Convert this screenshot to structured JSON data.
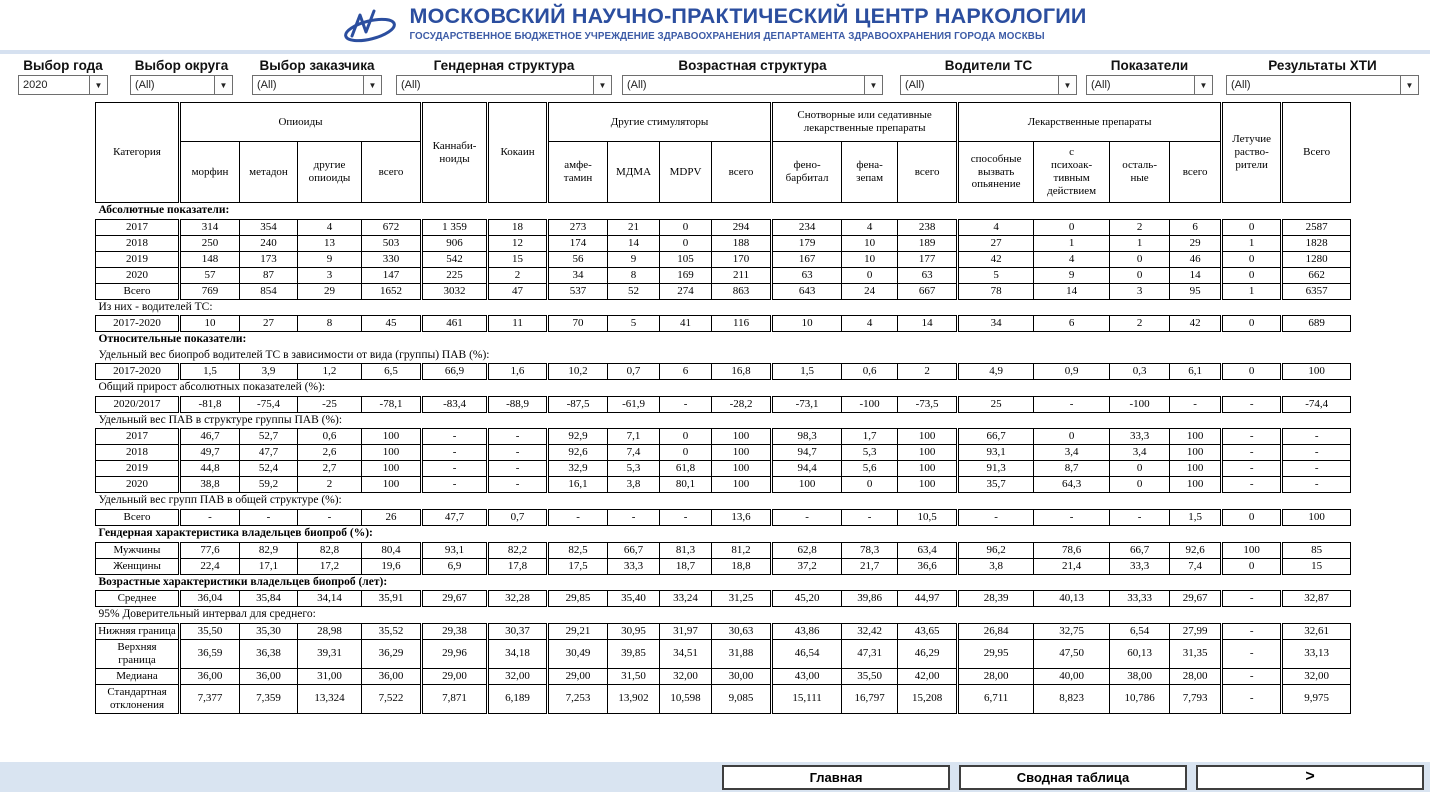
{
  "header": {
    "title": "МОСКОВСКИЙ НАУЧНО-ПРАКТИЧЕСКИЙ ЦЕНТР НАРКОЛОГИИ",
    "subtitle": "ГОСУДАРСТВЕННОЕ БЮДЖЕТНОЕ УЧРЕЖДЕНИЕ ЗДРАВООХРАНЕНИЯ ДЕПАРТАМЕНТА ЗДРАВООХРАНЕНИЯ ГОРОДА МОСКВЫ",
    "logo_icon": "mnpc-swoosh-logo"
  },
  "colors": {
    "brand_blue": "#2b4e9f",
    "footer_bar": "#d9e4f1",
    "table_border": "#000000"
  },
  "filters": [
    {
      "label": "Выбор года",
      "value": "2020"
    },
    {
      "label": "Выбор округа",
      "value": "(All)"
    },
    {
      "label": "Выбор заказчика",
      "value": "(All)"
    },
    {
      "label": "Гендерная структура",
      "value": "(All)"
    },
    {
      "label": "Возрастная структура",
      "value": "(All)"
    },
    {
      "label": "Водители ТС",
      "value": "(All)"
    },
    {
      "label": "Показатели",
      "value": "(All)"
    },
    {
      "label": "Результаты ХТИ",
      "value": "(All)"
    }
  ],
  "table": {
    "header": {
      "category": "Категория",
      "groups": [
        {
          "label": "Опиоиды",
          "children": [
            "морфин",
            "метадон",
            "другие\nопиоиды",
            "всего"
          ]
        },
        {
          "label": "Каннаби-\nноиды",
          "children": []
        },
        {
          "label": "Кокаин",
          "children": []
        },
        {
          "label": "Другие стимуляторы",
          "children": [
            "амфе-\nтамин",
            "МДМА",
            "MDPV",
            "всего"
          ]
        },
        {
          "label": "Снотворные или седативные\nлекарственные препараты",
          "children": [
            "фено-\nбарбитал",
            "фена-\nзепам",
            "всего"
          ]
        },
        {
          "label": "Лекарственные препараты",
          "children": [
            "способные\nвызвать\nопьянение",
            "с\nпсихоак-\nтивным\nдействием",
            "осталь-\nные",
            "всего"
          ]
        },
        {
          "label": "Летучие\nраство-\nрители",
          "children": []
        },
        {
          "label": "Всего",
          "children": []
        }
      ]
    },
    "sections": [
      {
        "titles": [
          {
            "text": "Абсолютные показатели:",
            "bold": true
          }
        ],
        "rows": [
          {
            "label": "2017",
            "values": [
              "314",
              "354",
              "4",
              "672",
              "1 359",
              "18",
              "273",
              "21",
              "0",
              "294",
              "234",
              "4",
              "238",
              "4",
              "0",
              "2",
              "6",
              "0",
              "2587"
            ]
          },
          {
            "label": "2018",
            "values": [
              "250",
              "240",
              "13",
              "503",
              "906",
              "12",
              "174",
              "14",
              "0",
              "188",
              "179",
              "10",
              "189",
              "27",
              "1",
              "1",
              "29",
              "1",
              "1828"
            ]
          },
          {
            "label": "2019",
            "values": [
              "148",
              "173",
              "9",
              "330",
              "542",
              "15",
              "56",
              "9",
              "105",
              "170",
              "167",
              "10",
              "177",
              "42",
              "4",
              "0",
              "46",
              "0",
              "1280"
            ]
          },
          {
            "label": "2020",
            "values": [
              "57",
              "87",
              "3",
              "147",
              "225",
              "2",
              "34",
              "8",
              "169",
              "211",
              "63",
              "0",
              "63",
              "5",
              "9",
              "0",
              "14",
              "0",
              "662"
            ]
          },
          {
            "label": "Всего",
            "values": [
              "769",
              "854",
              "29",
              "1652",
              "3032",
              "47",
              "537",
              "52",
              "274",
              "863",
              "643",
              "24",
              "667",
              "78",
              "14",
              "3",
              "95",
              "1",
              "6357"
            ]
          }
        ]
      },
      {
        "titles": [
          {
            "text": "Из них - водителей ТС:",
            "bold": false
          }
        ],
        "rows": [
          {
            "label": "2017-2020",
            "values": [
              "10",
              "27",
              "8",
              "45",
              "461",
              "11",
              "70",
              "5",
              "41",
              "116",
              "10",
              "4",
              "14",
              "34",
              "6",
              "2",
              "42",
              "0",
              "689"
            ]
          }
        ]
      },
      {
        "titles": [
          {
            "text": "Относительные показатели:",
            "bold": true
          },
          {
            "text": "Удельный вес биопроб водителей ТС в зависимости от вида (группы) ПАВ (%):",
            "bold": false
          }
        ],
        "rows": [
          {
            "label": "2017-2020",
            "values": [
              "1,5",
              "3,9",
              "1,2",
              "6,5",
              "66,9",
              "1,6",
              "10,2",
              "0,7",
              "6",
              "16,8",
              "1,5",
              "0,6",
              "2",
              "4,9",
              "0,9",
              "0,3",
              "6,1",
              "0",
              "100"
            ]
          }
        ]
      },
      {
        "titles": [
          {
            "text": "Общий прирост абсолютных показателей (%):",
            "bold": false
          }
        ],
        "rows": [
          {
            "label": "2020/2017",
            "values": [
              "-81,8",
              "-75,4",
              "-25",
              "-78,1",
              "-83,4",
              "-88,9",
              "-87,5",
              "-61,9",
              "-",
              "-28,2",
              "-73,1",
              "-100",
              "-73,5",
              "25",
              "-",
              "-100",
              "-",
              "-",
              "-74,4"
            ]
          }
        ]
      },
      {
        "titles": [
          {
            "text": "Удельный вес ПАВ в структуре группы ПАВ (%):",
            "bold": false
          }
        ],
        "rows": [
          {
            "label": "2017",
            "values": [
              "46,7",
              "52,7",
              "0,6",
              "100",
              "-",
              "-",
              "92,9",
              "7,1",
              "0",
              "100",
              "98,3",
              "1,7",
              "100",
              "66,7",
              "0",
              "33,3",
              "100",
              "-",
              "-"
            ]
          },
          {
            "label": "2018",
            "values": [
              "49,7",
              "47,7",
              "2,6",
              "100",
              "-",
              "-",
              "92,6",
              "7,4",
              "0",
              "100",
              "94,7",
              "5,3",
              "100",
              "93,1",
              "3,4",
              "3,4",
              "100",
              "-",
              "-"
            ]
          },
          {
            "label": "2019",
            "values": [
              "44,8",
              "52,4",
              "2,7",
              "100",
              "-",
              "-",
              "32,9",
              "5,3",
              "61,8",
              "100",
              "94,4",
              "5,6",
              "100",
              "91,3",
              "8,7",
              "0",
              "100",
              "-",
              "-"
            ]
          },
          {
            "label": "2020",
            "values": [
              "38,8",
              "59,2",
              "2",
              "100",
              "-",
              "-",
              "16,1",
              "3,8",
              "80,1",
              "100",
              "100",
              "0",
              "100",
              "35,7",
              "64,3",
              "0",
              "100",
              "-",
              "-"
            ]
          }
        ]
      },
      {
        "titles": [
          {
            "text": "Удельный вес групп ПАВ в общей структуре (%):",
            "bold": false
          }
        ],
        "rows": [
          {
            "label": "Всего",
            "values": [
              "-",
              "-",
              "-",
              "26",
              "47,7",
              "0,7",
              "-",
              "-",
              "-",
              "13,6",
              "-",
              "-",
              "10,5",
              "-",
              "-",
              "-",
              "1,5",
              "0",
              "100"
            ]
          }
        ]
      },
      {
        "titles": [
          {
            "text": "Гендерная характеристика владельцев биопроб (%):",
            "bold": true
          }
        ],
        "rows": [
          {
            "label": "Мужчины",
            "values": [
              "77,6",
              "82,9",
              "82,8",
              "80,4",
              "93,1",
              "82,2",
              "82,5",
              "66,7",
              "81,3",
              "81,2",
              "62,8",
              "78,3",
              "63,4",
              "96,2",
              "78,6",
              "66,7",
              "92,6",
              "100",
              "85"
            ]
          },
          {
            "label": "Женщины",
            "values": [
              "22,4",
              "17,1",
              "17,2",
              "19,6",
              "6,9",
              "17,8",
              "17,5",
              "33,3",
              "18,7",
              "18,8",
              "37,2",
              "21,7",
              "36,6",
              "3,8",
              "21,4",
              "33,3",
              "7,4",
              "0",
              "15"
            ]
          }
        ]
      },
      {
        "titles": [
          {
            "text": "Возрастные характеристики владельцев биопроб (лет):",
            "bold": true
          }
        ],
        "rows": [
          {
            "label": "Среднее",
            "values": [
              "36,04",
              "35,84",
              "34,14",
              "35,91",
              "29,67",
              "32,28",
              "29,85",
              "35,40",
              "33,24",
              "31,25",
              "45,20",
              "39,86",
              "44,97",
              "28,39",
              "40,13",
              "33,33",
              "29,67",
              "-",
              "32,87"
            ]
          }
        ]
      },
      {
        "titles": [
          {
            "text": "95% Доверительный интервал для среднего:",
            "bold": false
          }
        ],
        "rows": [
          {
            "label": "Нижняя граница",
            "values": [
              "35,50",
              "35,30",
              "28,98",
              "35,52",
              "29,38",
              "30,37",
              "29,21",
              "30,95",
              "31,97",
              "30,63",
              "43,86",
              "32,42",
              "43,65",
              "26,84",
              "32,75",
              "6,54",
              "27,99",
              "-",
              "32,61"
            ]
          },
          {
            "label": "Верхняя граница",
            "values": [
              "36,59",
              "36,38",
              "39,31",
              "36,29",
              "29,96",
              "34,18",
              "30,49",
              "39,85",
              "34,51",
              "31,88",
              "46,54",
              "47,31",
              "46,29",
              "29,95",
              "47,50",
              "60,13",
              "31,35",
              "-",
              "33,13"
            ]
          },
          {
            "label": "Медиана",
            "values": [
              "36,00",
              "36,00",
              "31,00",
              "36,00",
              "29,00",
              "32,00",
              "29,00",
              "31,50",
              "32,00",
              "30,00",
              "43,00",
              "35,50",
              "42,00",
              "28,00",
              "40,00",
              "38,00",
              "28,00",
              "-",
              "32,00"
            ]
          },
          {
            "label": "Стандартная отклонения",
            "values": [
              "7,377",
              "7,359",
              "13,324",
              "7,522",
              "7,871",
              "6,189",
              "7,253",
              "13,902",
              "10,598",
              "9,085",
              "15,111",
              "16,797",
              "15,208",
              "6,711",
              "8,823",
              "10,786",
              "7,793",
              "-",
              "9,975"
            ]
          }
        ]
      }
    ]
  },
  "footer": {
    "buttons": [
      "Главная",
      "Сводная таблица",
      ">"
    ]
  }
}
